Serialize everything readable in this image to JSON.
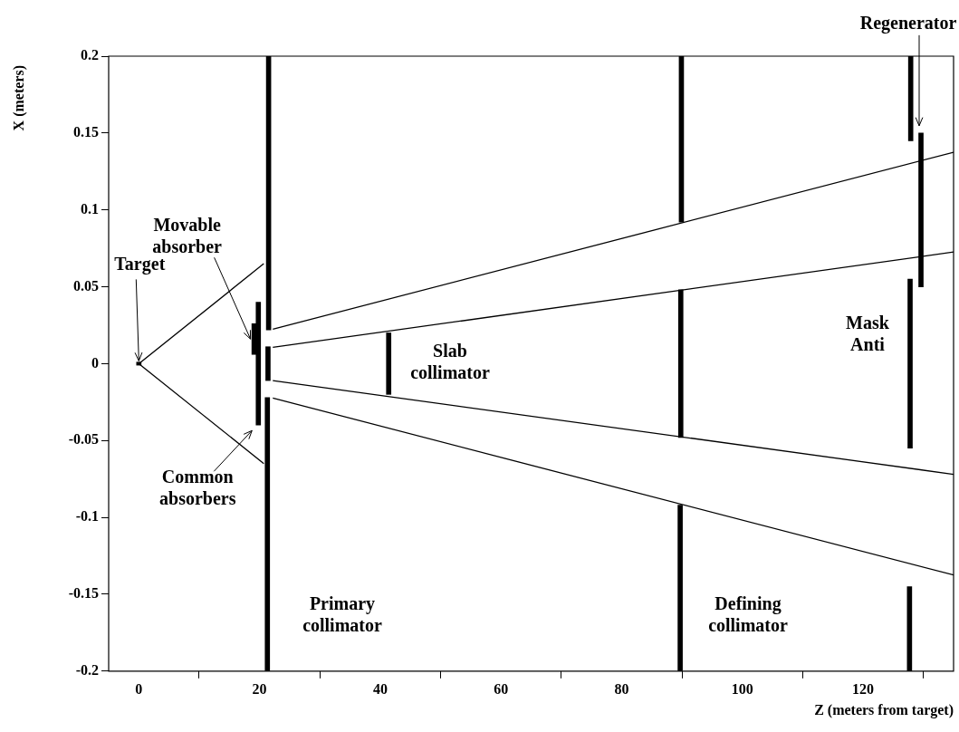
{
  "chart_data": {
    "type": "line",
    "xlabel": "Z (meters from target)",
    "ylabel": "X (meters)",
    "xlim": [
      -5,
      135
    ],
    "xticks": [
      0,
      20,
      40,
      60,
      80,
      100,
      120
    ],
    "ylim": [
      -0.2,
      0.2
    ],
    "yticks": [
      -0.2,
      -0.15,
      -0.1,
      -0.05,
      0,
      0.05,
      0.1,
      0.15,
      0.2
    ],
    "grid": false,
    "legend": false,
    "marker": "none",
    "line_style": "solid",
    "series": [
      {
        "color": "#000000",
        "x": [
          0,
          20.7
        ],
        "values": [
          0,
          0.065
        ]
      },
      {
        "color": "#000000",
        "x": [
          0,
          20.7
        ],
        "values": [
          0,
          -0.065
        ]
      },
      {
        "color": "#000000",
        "x": [
          22.2,
          135
        ],
        "values": [
          0.0224,
          0.1375
        ]
      },
      {
        "color": "#000000",
        "x": [
          22.2,
          135
        ],
        "values": [
          0.0106,
          0.0726
        ]
      },
      {
        "color": "#000000",
        "x": [
          22.2,
          135
        ],
        "values": [
          -0.011,
          -0.072
        ]
      },
      {
        "color": "#000000",
        "x": [
          22.2,
          135
        ],
        "values": [
          -0.0224,
          -0.1375
        ]
      },
      {
        "type": "bar",
        "color": "#000000",
        "x": [
          0,
          19.1,
          19.8,
          21.3,
          21.4,
          21.5,
          41.4,
          89.7,
          89.8,
          89.9,
          127.7,
          127.8,
          127.9,
          129.6
        ],
        "base": [
          -0.001,
          0.006,
          -0.04,
          -0.2,
          -0.011,
          0.022,
          -0.02,
          -0.2,
          -0.048,
          0.092,
          -0.2,
          -0.055,
          0.145,
          0.05
        ],
        "values": [
          0.002,
          0.02,
          0.08,
          0.178,
          0.022,
          0.178,
          0.04,
          0.108,
          0.096,
          0.108,
          0.055,
          0.11,
          0.055,
          0.1
        ]
      }
    ],
    "annotations": [
      {
        "text": "Target",
        "x": 0,
        "y": 0
      },
      {
        "text": "Movable absorber",
        "x": 19.1,
        "y": 0.016
      },
      {
        "text": "Common absorbers",
        "x": 19.8,
        "y": -0.04
      },
      "Slab collimator",
      "Primary collimator",
      "Defining collimator",
      "Mask Anti",
      {
        "text": "Regenerator",
        "x": 129.6,
        "y": 0.15
      }
    ]
  }
}
